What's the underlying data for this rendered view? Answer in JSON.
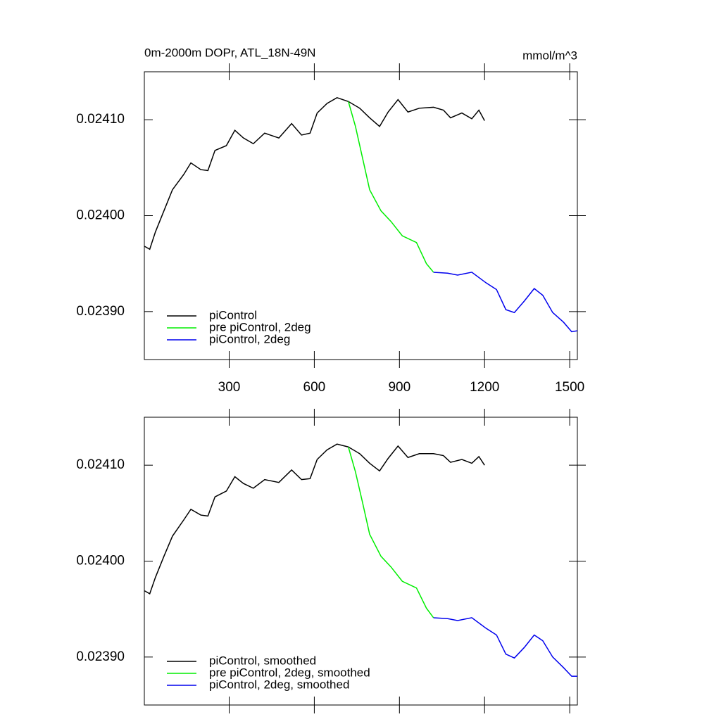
{
  "chart_data": [
    {
      "type": "line",
      "title": "0m-2000m DOPr, ATL_18N-49N",
      "units": "mmol/m^3",
      "xlim": [
        1,
        1527
      ],
      "xticks": [
        300,
        600,
        900,
        1200,
        1500
      ],
      "show_xtick_labels": true,
      "ylim": [
        0.02385,
        0.02415
      ],
      "yticks": [
        {
          "value": 0.0239,
          "label": "0.02390"
        },
        {
          "value": 0.024,
          "label": "0.02400"
        },
        {
          "value": 0.0241,
          "label": "0.02410"
        }
      ],
      "legend": "lower left",
      "series": [
        {
          "name": "piControl",
          "color": "#000000",
          "x": [
            2,
            20,
            40,
            70,
            100,
            140,
            165,
            200,
            225,
            250,
            290,
            320,
            350,
            385,
            425,
            475,
            520,
            555,
            585,
            610,
            645,
            680,
            720,
            760,
            795,
            830,
            860,
            895,
            930,
            970,
            1020,
            1055,
            1080,
            1120,
            1155,
            1180,
            1200
          ],
          "values": [
            0.023968,
            0.023965,
            0.023983,
            0.024005,
            0.024027,
            0.024043,
            0.024055,
            0.024048,
            0.024047,
            0.024068,
            0.024073,
            0.024089,
            0.024081,
            0.024075,
            0.024086,
            0.024081,
            0.024096,
            0.024084,
            0.024086,
            0.024107,
            0.024117,
            0.024123,
            0.024119,
            0.024112,
            0.024102,
            0.024093,
            0.024108,
            0.024121,
            0.024108,
            0.024112,
            0.024113,
            0.02411,
            0.024102,
            0.024107,
            0.024101,
            0.02411,
            0.024099
          ]
        },
        {
          "name": "pre piControl, 2deg",
          "color": "#00ee00",
          "x": [
            720,
            745,
            770,
            795,
            835,
            870,
            910,
            960,
            995,
            1020
          ],
          "values": [
            0.024119,
            0.024093,
            0.02406,
            0.024027,
            0.024005,
            0.023994,
            0.023979,
            0.023972,
            0.02395,
            0.023941
          ]
        },
        {
          "name": "piControl, 2deg",
          "color": "#0000ee",
          "x": [
            1020,
            1070,
            1105,
            1155,
            1205,
            1242,
            1275,
            1305,
            1340,
            1375,
            1405,
            1440,
            1478,
            1507,
            1527
          ],
          "values": [
            0.023941,
            0.02394,
            0.023938,
            0.023941,
            0.02393,
            0.023923,
            0.023902,
            0.023899,
            0.023911,
            0.023924,
            0.023917,
            0.023899,
            0.023889,
            0.023879,
            0.02388
          ]
        }
      ]
    },
    {
      "type": "line",
      "xlim": [
        1,
        1527
      ],
      "xticks": [
        300,
        600,
        900,
        1200,
        1500
      ],
      "show_xtick_labels": false,
      "ylim": [
        0.02385,
        0.02415
      ],
      "yticks": [
        {
          "value": 0.0239,
          "label": "0.02390"
        },
        {
          "value": 0.024,
          "label": "0.02400"
        },
        {
          "value": 0.0241,
          "label": "0.02410"
        }
      ],
      "legend": "lower left",
      "series": [
        {
          "name": "piControl, smoothed",
          "color": "#000000",
          "x": [
            2,
            20,
            40,
            70,
            100,
            140,
            165,
            200,
            225,
            250,
            290,
            320,
            350,
            385,
            425,
            475,
            520,
            555,
            585,
            610,
            645,
            680,
            720,
            760,
            795,
            830,
            860,
            895,
            930,
            970,
            1020,
            1055,
            1080,
            1120,
            1155,
            1180,
            1200
          ],
          "values": [
            0.023969,
            0.023966,
            0.023983,
            0.024005,
            0.024026,
            0.024043,
            0.024054,
            0.024048,
            0.024047,
            0.024067,
            0.024073,
            0.024088,
            0.024081,
            0.024076,
            0.024085,
            0.024082,
            0.024095,
            0.024085,
            0.024086,
            0.024106,
            0.024116,
            0.024122,
            0.024119,
            0.024112,
            0.024102,
            0.024094,
            0.024107,
            0.02412,
            0.024108,
            0.024112,
            0.024112,
            0.02411,
            0.024103,
            0.024106,
            0.024102,
            0.024109,
            0.0241
          ]
        },
        {
          "name": "pre piControl, 2deg, smoothed",
          "color": "#00ee00",
          "x": [
            720,
            745,
            770,
            795,
            835,
            870,
            910,
            960,
            995,
            1020
          ],
          "values": [
            0.024119,
            0.024093,
            0.024061,
            0.024028,
            0.024005,
            0.023994,
            0.023979,
            0.023972,
            0.023951,
            0.023941
          ]
        },
        {
          "name": "piControl, 2deg, smoothed",
          "color": "#0000ee",
          "x": [
            1020,
            1070,
            1105,
            1155,
            1205,
            1242,
            1275,
            1305,
            1340,
            1375,
            1405,
            1440,
            1478,
            1507,
            1527
          ],
          "values": [
            0.023941,
            0.02394,
            0.023938,
            0.023941,
            0.02393,
            0.023923,
            0.023903,
            0.023899,
            0.02391,
            0.023923,
            0.023917,
            0.0239,
            0.023889,
            0.02388,
            0.02388
          ]
        }
      ]
    }
  ]
}
